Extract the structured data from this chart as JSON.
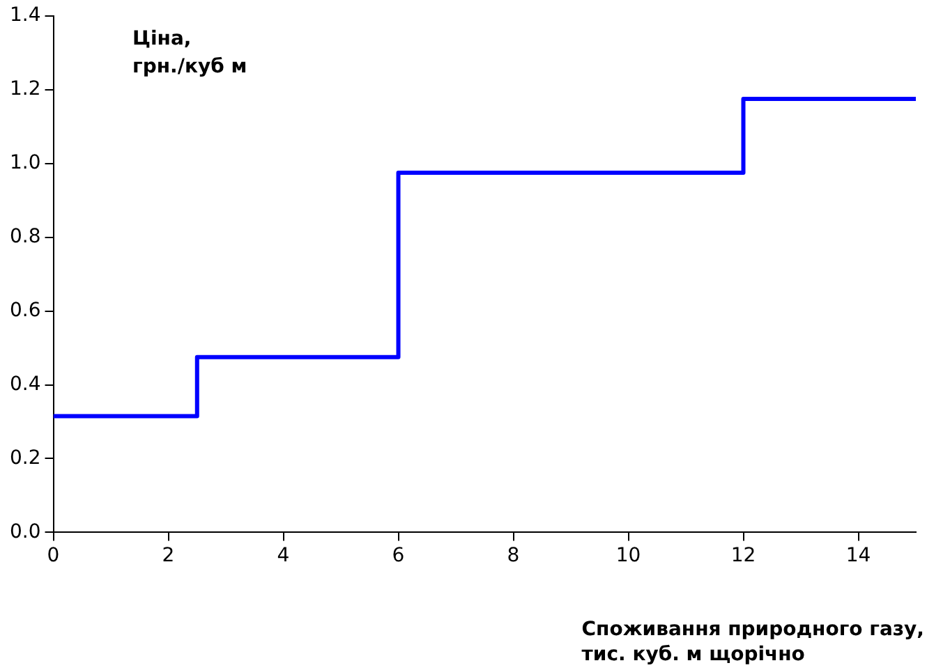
{
  "chart_data": {
    "type": "step",
    "ylabel": "Ціна,\nгрн./куб м",
    "xlabel": "Споживання природного газу,\nтис. куб. м щорічно",
    "x": [
      0,
      2.5,
      6,
      12,
      15
    ],
    "series": [
      {
        "color": "#0000ff",
        "values": [
          0.315,
          0.475,
          0.975,
          1.175,
          1.175
        ]
      }
    ],
    "xlim": [
      0,
      15
    ],
    "xticks": [
      0,
      2,
      4,
      6,
      8,
      10,
      12,
      14
    ],
    "ylim": [
      0,
      1.4
    ],
    "yticks": [
      {
        "value": 0,
        "label": "0.0"
      },
      {
        "value": 0.2,
        "label": "0.2"
      },
      {
        "value": 0.4,
        "label": "0.4"
      },
      {
        "value": 0.6,
        "label": "0.6"
      },
      {
        "value": 0.8,
        "label": "0.8"
      },
      {
        "value": 1,
        "label": "1.0"
      },
      {
        "value": 1.2,
        "label": "1.2"
      },
      {
        "value": 1.4,
        "label": "1.4"
      }
    ],
    "grid": false,
    "legend": false
  }
}
